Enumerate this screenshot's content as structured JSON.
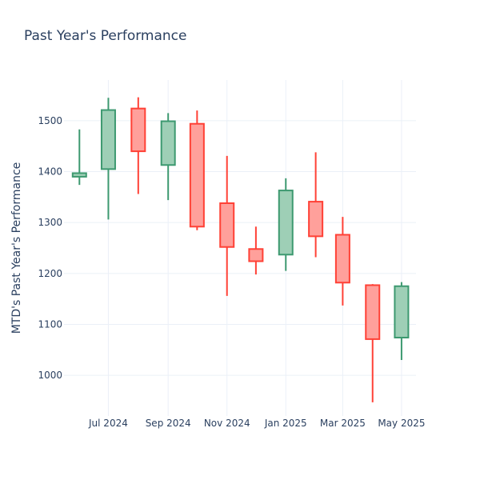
{
  "chart_data": {
    "type": "candlestick",
    "title": "Past Year's Performance",
    "ylabel": "MTD's Past Year's Performance",
    "xlabel": "",
    "ylim": [
      920,
      1580
    ],
    "y_ticks": [
      1000,
      1100,
      1200,
      1300,
      1400,
      1500
    ],
    "x_ticks": [
      {
        "date": "2024-07-01",
        "label": "Jul 2024"
      },
      {
        "date": "2024-09-01",
        "label": "Sep 2024"
      },
      {
        "date": "2024-11-01",
        "label": "Nov 2024"
      },
      {
        "date": "2025-01-01",
        "label": "Jan 2025"
      },
      {
        "date": "2025-03-01",
        "label": "Mar 2025"
      },
      {
        "date": "2025-05-01",
        "label": "May 2025"
      }
    ],
    "x_range": [
      "2024-05-16",
      "2025-05-16"
    ],
    "increasing_color": "#3d9970",
    "increasing_fill": "#9ecfb6",
    "decreasing_color": "#ff4136",
    "decreasing_fill": "#ffa09b",
    "grid": true,
    "candles": [
      {
        "date": "2024-06-01",
        "open": 1390,
        "high": 1483,
        "low": 1374,
        "close": 1397
      },
      {
        "date": "2024-07-01",
        "open": 1405,
        "high": 1545,
        "low": 1306,
        "close": 1521
      },
      {
        "date": "2024-08-01",
        "open": 1524,
        "high": 1546,
        "low": 1356,
        "close": 1440
      },
      {
        "date": "2024-09-01",
        "open": 1413,
        "high": 1515,
        "low": 1344,
        "close": 1499
      },
      {
        "date": "2024-10-01",
        "open": 1494,
        "high": 1520,
        "low": 1285,
        "close": 1292
      },
      {
        "date": "2024-11-01",
        "open": 1338,
        "high": 1431,
        "low": 1156,
        "close": 1252
      },
      {
        "date": "2024-12-01",
        "open": 1248,
        "high": 1292,
        "low": 1198,
        "close": 1224
      },
      {
        "date": "2025-01-01",
        "open": 1237,
        "high": 1387,
        "low": 1205,
        "close": 1363
      },
      {
        "date": "2025-02-01",
        "open": 1341,
        "high": 1438,
        "low": 1232,
        "close": 1273
      },
      {
        "date": "2025-03-01",
        "open": 1276,
        "high": 1311,
        "low": 1137,
        "close": 1182
      },
      {
        "date": "2025-04-01",
        "open": 1177,
        "high": 1179,
        "low": 947,
        "close": 1071
      },
      {
        "date": "2025-05-01",
        "open": 1074,
        "high": 1183,
        "low": 1030,
        "close": 1175
      }
    ]
  }
}
